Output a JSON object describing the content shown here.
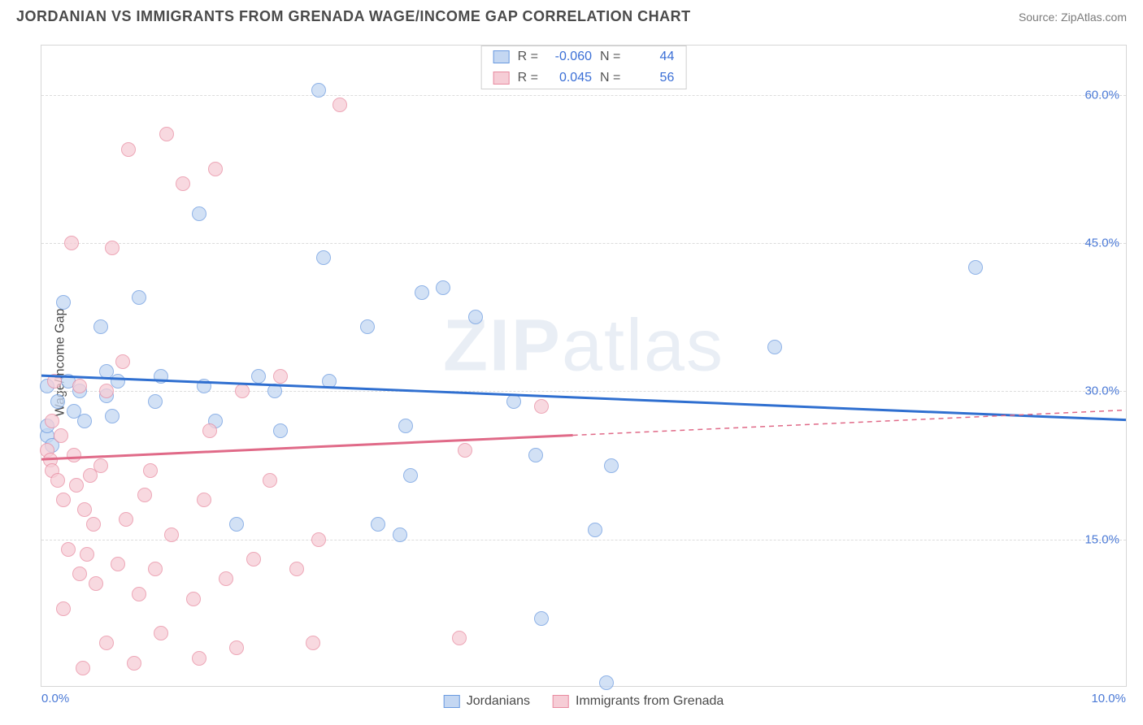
{
  "title": "JORDANIAN VS IMMIGRANTS FROM GRENADA WAGE/INCOME GAP CORRELATION CHART",
  "source": "Source: ZipAtlas.com",
  "ylabel": "Wage/Income Gap",
  "watermark_bold": "ZIP",
  "watermark_light": "atlas",
  "chart": {
    "type": "scatter",
    "xlim": [
      0,
      10
    ],
    "ylim": [
      0,
      65
    ],
    "y_ticks": [
      15,
      30,
      45,
      60
    ],
    "y_tick_labels": [
      "15.0%",
      "30.0%",
      "45.0%",
      "60.0%"
    ],
    "x_tick_labels": [
      "0.0%",
      "10.0%"
    ],
    "background_color": "#ffffff",
    "grid_color": "#dcdcdc",
    "series": [
      {
        "name": "Jordanians",
        "marker_fill": "#c4d7f2",
        "marker_stroke": "#6a9ae0",
        "marker_opacity": 0.75,
        "line_color": "#2f6fd0",
        "line_width": 3,
        "R": "-0.060",
        "N": "44",
        "trend": {
          "x1": 0,
          "y1": 31.5,
          "x2": 10,
          "y2": 27.0,
          "dashed_from": null
        },
        "points": [
          [
            0.05,
            25.5
          ],
          [
            0.05,
            30.5
          ],
          [
            0.05,
            26.5
          ],
          [
            0.1,
            24.5
          ],
          [
            0.15,
            29.0
          ],
          [
            0.2,
            39.0
          ],
          [
            0.25,
            31.0
          ],
          [
            0.3,
            28.0
          ],
          [
            0.35,
            30.0
          ],
          [
            0.4,
            27.0
          ],
          [
            0.55,
            36.5
          ],
          [
            0.6,
            29.5
          ],
          [
            0.6,
            32.0
          ],
          [
            0.65,
            27.5
          ],
          [
            0.7,
            31.0
          ],
          [
            0.9,
            39.5
          ],
          [
            1.05,
            29.0
          ],
          [
            1.1,
            31.5
          ],
          [
            1.45,
            48.0
          ],
          [
            1.5,
            30.5
          ],
          [
            1.6,
            27.0
          ],
          [
            1.8,
            16.5
          ],
          [
            2.0,
            31.5
          ],
          [
            2.15,
            30.0
          ],
          [
            2.2,
            26.0
          ],
          [
            2.55,
            60.5
          ],
          [
            2.6,
            43.5
          ],
          [
            2.65,
            31.0
          ],
          [
            3.0,
            36.5
          ],
          [
            3.1,
            16.5
          ],
          [
            3.3,
            15.5
          ],
          [
            3.35,
            26.5
          ],
          [
            3.4,
            21.5
          ],
          [
            3.5,
            40.0
          ],
          [
            3.7,
            40.5
          ],
          [
            4.0,
            37.5
          ],
          [
            4.35,
            29.0
          ],
          [
            4.55,
            23.5
          ],
          [
            4.6,
            7.0
          ],
          [
            5.1,
            16.0
          ],
          [
            5.2,
            0.5
          ],
          [
            5.25,
            22.5
          ],
          [
            6.75,
            34.5
          ],
          [
            8.6,
            42.5
          ]
        ]
      },
      {
        "name": "Immigrants from Grenada",
        "marker_fill": "#f6cdd6",
        "marker_stroke": "#e88aa0",
        "marker_opacity": 0.75,
        "line_color": "#e06a88",
        "line_width": 3,
        "R": "0.045",
        "N": "56",
        "trend": {
          "x1": 0,
          "y1": 23.0,
          "x2": 10,
          "y2": 28.0,
          "dashed_from": 4.9
        },
        "points": [
          [
            0.05,
            24.0
          ],
          [
            0.08,
            23.0
          ],
          [
            0.1,
            22.0
          ],
          [
            0.1,
            27.0
          ],
          [
            0.12,
            31.0
          ],
          [
            0.15,
            21.0
          ],
          [
            0.18,
            25.5
          ],
          [
            0.2,
            19.0
          ],
          [
            0.2,
            8.0
          ],
          [
            0.25,
            14.0
          ],
          [
            0.28,
            45.0
          ],
          [
            0.3,
            23.5
          ],
          [
            0.32,
            20.5
          ],
          [
            0.35,
            30.5
          ],
          [
            0.35,
            11.5
          ],
          [
            0.38,
            2.0
          ],
          [
            0.4,
            18.0
          ],
          [
            0.42,
            13.5
          ],
          [
            0.45,
            21.5
          ],
          [
            0.48,
            16.5
          ],
          [
            0.5,
            10.5
          ],
          [
            0.55,
            22.5
          ],
          [
            0.6,
            4.5
          ],
          [
            0.6,
            30.0
          ],
          [
            0.65,
            44.5
          ],
          [
            0.7,
            12.5
          ],
          [
            0.75,
            33.0
          ],
          [
            0.78,
            17.0
          ],
          [
            0.8,
            54.5
          ],
          [
            0.85,
            2.5
          ],
          [
            0.9,
            9.5
          ],
          [
            0.95,
            19.5
          ],
          [
            1.0,
            22.0
          ],
          [
            1.05,
            12.0
          ],
          [
            1.1,
            5.5
          ],
          [
            1.15,
            56.0
          ],
          [
            1.2,
            15.5
          ],
          [
            1.3,
            51.0
          ],
          [
            1.4,
            9.0
          ],
          [
            1.45,
            3.0
          ],
          [
            1.5,
            19.0
          ],
          [
            1.55,
            26.0
          ],
          [
            1.6,
            52.5
          ],
          [
            1.7,
            11.0
          ],
          [
            1.8,
            4.0
          ],
          [
            1.85,
            30.0
          ],
          [
            1.95,
            13.0
          ],
          [
            2.1,
            21.0
          ],
          [
            2.2,
            31.5
          ],
          [
            2.35,
            12.0
          ],
          [
            2.5,
            4.5
          ],
          [
            2.55,
            15.0
          ],
          [
            2.75,
            59.0
          ],
          [
            3.85,
            5.0
          ],
          [
            3.9,
            24.0
          ],
          [
            4.6,
            28.5
          ]
        ]
      }
    ]
  },
  "stat_legend": {
    "r_label": "R =",
    "n_label": "N ="
  },
  "bottom_legend_labels": [
    "Jordanians",
    "Immigrants from Grenada"
  ]
}
